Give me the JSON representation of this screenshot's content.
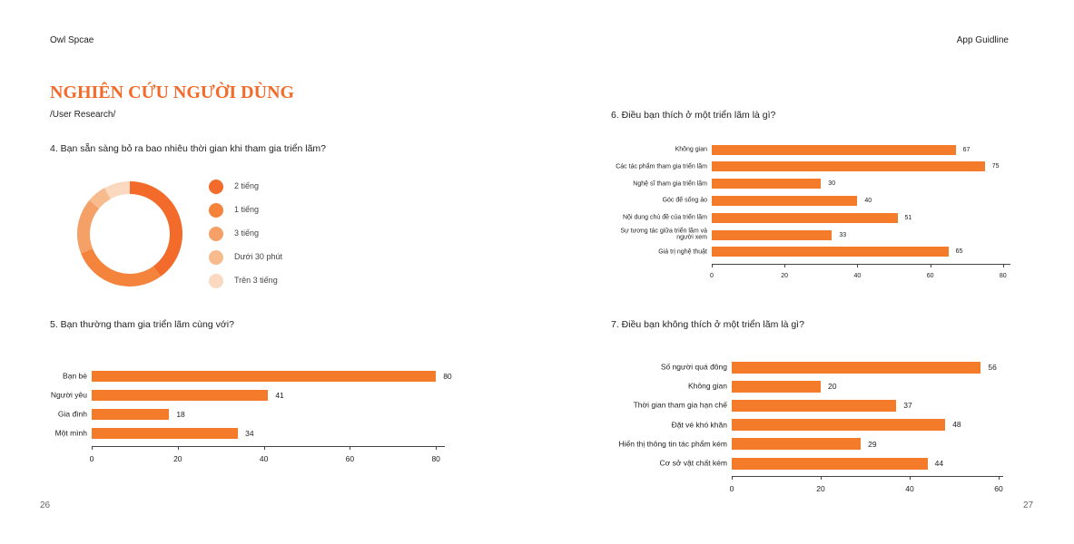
{
  "header": {
    "left": "Owl Spcae",
    "right": "App Guidline"
  },
  "title": "NGHIÊN CỨU NGƯỜI DÙNG",
  "subtitle": "/User Research/",
  "page_numbers": [
    "26",
    "27"
  ],
  "chart_data": [
    {
      "type": "donut",
      "title": "4. Bạn sẵn sàng bỏ ra bao nhiêu thời gian khi tham gia triển lãm?",
      "categories": [
        "2 tiếng",
        "1 tiếng",
        "3 tiếng",
        "Dưới 30 phút",
        "Trên 3 tiếng"
      ],
      "values": [
        40,
        29,
        17,
        6,
        8
      ],
      "colors": [
        "#f26b2a",
        "#f4843c",
        "#f5a066",
        "#f8bb8e",
        "#fbd9c0"
      ]
    },
    {
      "type": "bar",
      "orientation": "horizontal",
      "title": "5. Bạn thường tham gia triển lãm cùng với?",
      "categories": [
        "Bạn bè",
        "Người yêu",
        "Gia đình",
        "Một mình"
      ],
      "values": [
        80,
        41,
        18,
        34
      ],
      "color": "#f47b2a",
      "xlim": [
        0,
        82
      ],
      "xticks": [
        0,
        20,
        40,
        60,
        80
      ]
    },
    {
      "type": "bar",
      "orientation": "horizontal",
      "title": "6. Điều bạn thích ở một triển lãm là gì?",
      "categories": [
        "Không gian",
        "Các tác phẩm tham gia triển lãm",
        "Nghệ sĩ tham gia triển lãm",
        "Góc để sống ảo",
        "Nội dung chủ đề của triển lãm",
        "Sự tương tác giữa triển lãm và người xem",
        "Giá trị nghệ thuật"
      ],
      "values": [
        67,
        75,
        30,
        40,
        51,
        33,
        65
      ],
      "color": "#f47b2a",
      "xlim": [
        0,
        82
      ],
      "xticks": [
        0,
        20,
        40,
        60,
        80
      ]
    },
    {
      "type": "bar",
      "orientation": "horizontal",
      "title": "7. Điều bạn không thích ở một triển lãm là gì?",
      "categories": [
        "Số người quá đông",
        "Không gian",
        "Thời gian tham gia hạn chế",
        "Đặt vé khó khăn",
        "Hiển thị thông tin tác phẩm kém",
        "Cơ sở vật chất kém"
      ],
      "values": [
        56,
        20,
        37,
        48,
        29,
        44
      ],
      "color": "#f47b2a",
      "xlim": [
        0,
        61
      ],
      "xticks": [
        0,
        20,
        40,
        60
      ]
    }
  ]
}
